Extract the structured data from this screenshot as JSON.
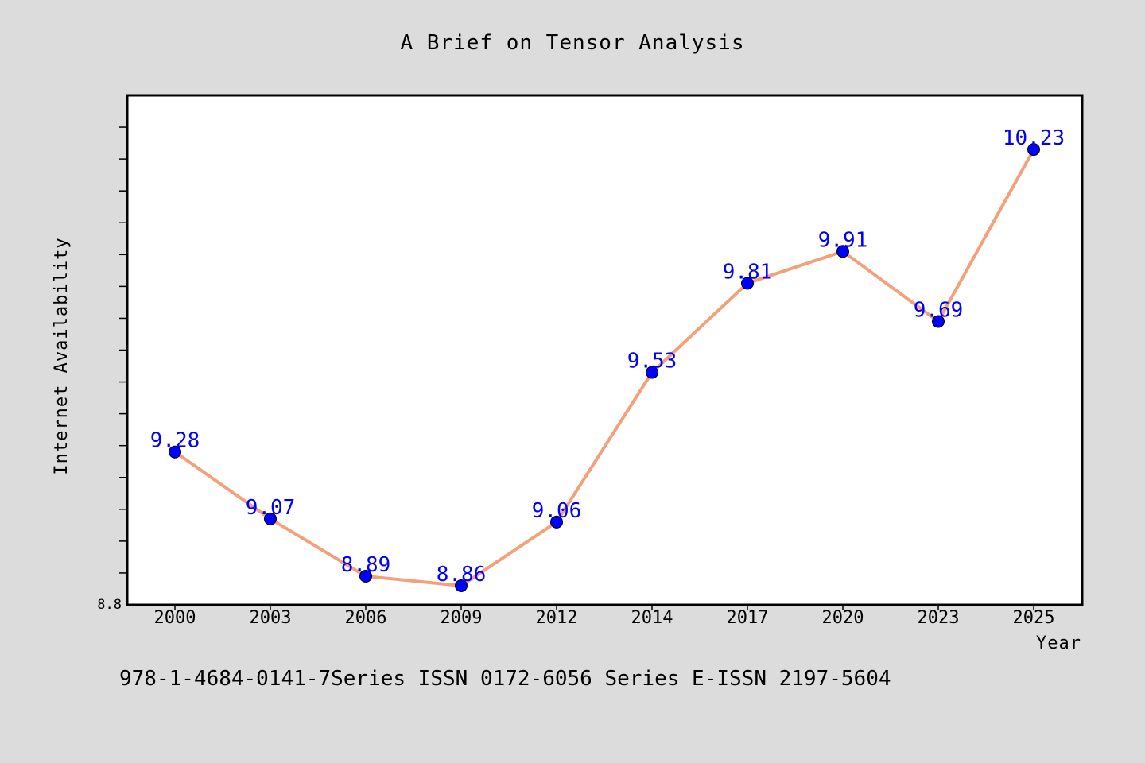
{
  "chart_data": {
    "type": "line",
    "title": "A Brief on Tensor Analysis",
    "xlabel": "Year",
    "ylabel": "Internet Availability",
    "categories": [
      "2000",
      "2003",
      "2006",
      "2009",
      "2012",
      "2014",
      "2017",
      "2020",
      "2023",
      "2025"
    ],
    "series": [
      {
        "values": [
          9.28,
          9.07,
          8.89,
          8.86,
          9.06,
          9.53,
          9.81,
          9.91,
          9.69,
          10.23
        ]
      }
    ],
    "data_labels": [
      "9.28",
      "9.07",
      "8.89",
      "8.86",
      "9.06",
      "9.53",
      "9.81",
      "9.91",
      "9.69",
      "10.23"
    ],
    "ylim": [
      8.8,
      10.4
    ],
    "yticks_labeled": [
      "8.8"
    ],
    "grid": false,
    "line_color": "#f4a07a",
    "marker_color": "#0000ff",
    "label_color": "#0000ff"
  },
  "footer": "978-1-4684-0141-7Series ISSN 0172-6056 Series E-ISSN 2197-5604"
}
